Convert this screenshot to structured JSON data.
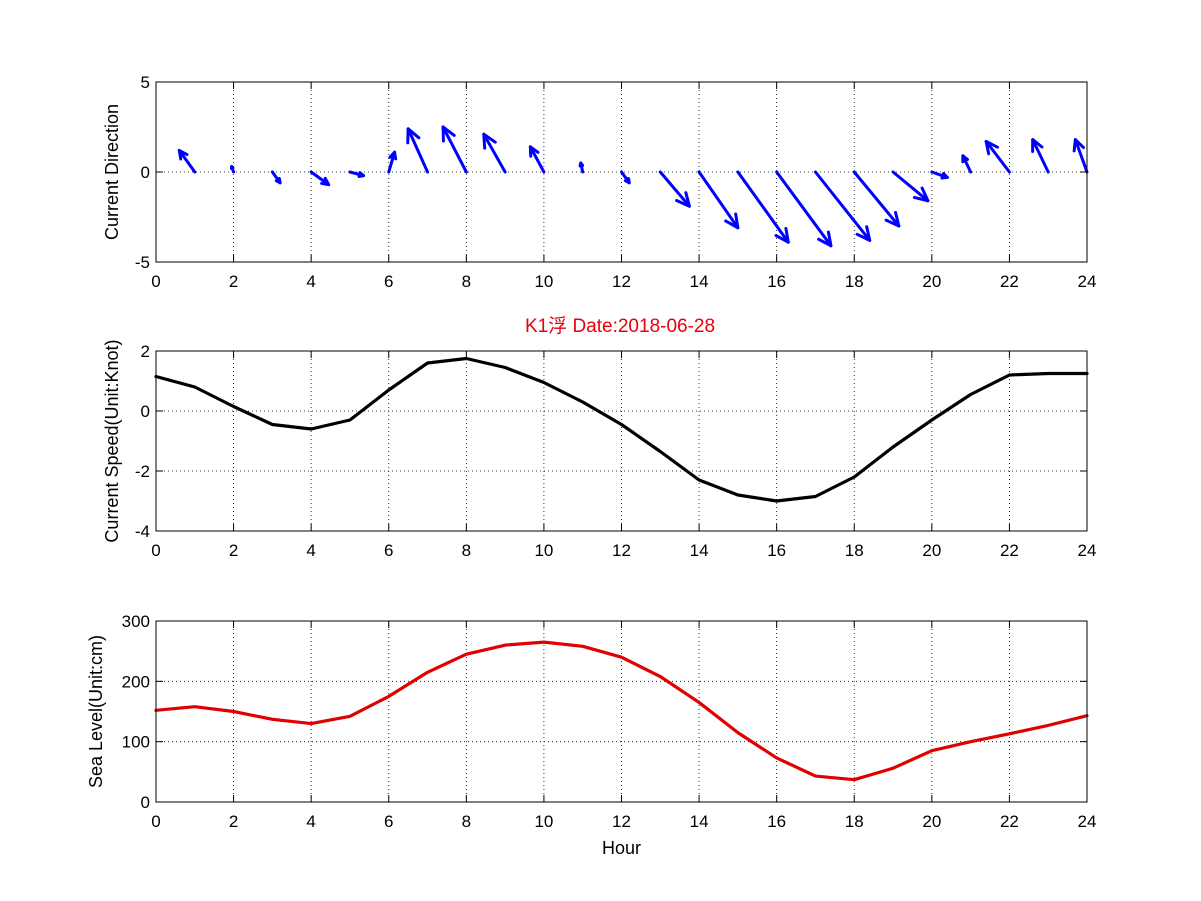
{
  "figure": {
    "title": "K1浮    Date:2018-06-28",
    "title_color": "#e8000b",
    "background": "#ffffff"
  },
  "chart_data": [
    {
      "type": "quiver",
      "xlabel": "",
      "ylabel": "Current Direction",
      "xlim": [
        0,
        24
      ],
      "ylim": [
        -5,
        5
      ],
      "xticks": [
        0,
        2,
        4,
        6,
        8,
        10,
        12,
        14,
        16,
        18,
        20,
        22,
        24
      ],
      "yticks": [
        -5,
        0,
        5
      ],
      "grid": true,
      "color": "#0000ff",
      "vectors": [
        {
          "x": 0,
          "y": 0,
          "u": 0.0,
          "v": 0.0
        },
        {
          "x": 1,
          "y": 0,
          "u": -0.4,
          "v": 1.2
        },
        {
          "x": 2,
          "y": 0,
          "u": -0.05,
          "v": 0.3
        },
        {
          "x": 3,
          "y": 0,
          "u": 0.2,
          "v": -0.6
        },
        {
          "x": 4,
          "y": 0,
          "u": 0.45,
          "v": -0.7
        },
        {
          "x": 5,
          "y": 0,
          "u": 0.35,
          "v": -0.2
        },
        {
          "x": 6,
          "y": 0,
          "u": 0.15,
          "v": 1.1
        },
        {
          "x": 7,
          "y": 0,
          "u": -0.5,
          "v": 2.4
        },
        {
          "x": 8,
          "y": 0,
          "u": -0.6,
          "v": 2.5
        },
        {
          "x": 9,
          "y": 0,
          "u": -0.55,
          "v": 2.1
        },
        {
          "x": 10,
          "y": 0,
          "u": -0.35,
          "v": 1.4
        },
        {
          "x": 11,
          "y": 0,
          "u": -0.05,
          "v": 0.5
        },
        {
          "x": 12,
          "y": 0,
          "u": 0.2,
          "v": -0.6
        },
        {
          "x": 13,
          "y": 0,
          "u": 0.75,
          "v": -1.9
        },
        {
          "x": 14,
          "y": 0,
          "u": 1.0,
          "v": -3.1
        },
        {
          "x": 15,
          "y": 0,
          "u": 1.3,
          "v": -3.9
        },
        {
          "x": 16,
          "y": 0,
          "u": 1.4,
          "v": -4.1
        },
        {
          "x": 17,
          "y": 0,
          "u": 1.4,
          "v": -3.8
        },
        {
          "x": 18,
          "y": 0,
          "u": 1.15,
          "v": -3.0
        },
        {
          "x": 19,
          "y": 0,
          "u": 0.9,
          "v": -1.6
        },
        {
          "x": 20,
          "y": 0,
          "u": 0.4,
          "v": -0.3
        },
        {
          "x": 21,
          "y": 0,
          "u": -0.2,
          "v": 0.9
        },
        {
          "x": 22,
          "y": 0,
          "u": -0.6,
          "v": 1.7
        },
        {
          "x": 23,
          "y": 0,
          "u": -0.4,
          "v": 1.8
        },
        {
          "x": 24,
          "y": 0,
          "u": -0.3,
          "v": 1.8
        }
      ]
    },
    {
      "type": "line",
      "xlabel": "",
      "ylabel": "Current Speed(Unit:Knot)",
      "xlim": [
        0,
        24
      ],
      "ylim": [
        -4,
        2
      ],
      "xticks": [
        0,
        2,
        4,
        6,
        8,
        10,
        12,
        14,
        16,
        18,
        20,
        22,
        24
      ],
      "yticks": [
        -4,
        -2,
        0,
        2
      ],
      "grid": true,
      "color": "#000000",
      "x": [
        0,
        1,
        2,
        3,
        4,
        5,
        6,
        7,
        8,
        9,
        10,
        11,
        12,
        13,
        14,
        15,
        16,
        17,
        18,
        19,
        20,
        21,
        22,
        23,
        24
      ],
      "y": [
        1.15,
        0.8,
        0.15,
        -0.45,
        -0.6,
        -0.3,
        0.7,
        1.6,
        1.75,
        1.45,
        0.95,
        0.3,
        -0.45,
        -1.35,
        -2.3,
        -2.8,
        -3.0,
        -2.85,
        -2.2,
        -1.2,
        -0.3,
        0.55,
        1.2,
        1.25,
        1.25
      ]
    },
    {
      "type": "line",
      "xlabel": "Hour",
      "ylabel": "Sea Level(Unit:cm)",
      "xlim": [
        0,
        24
      ],
      "ylim": [
        0,
        300
      ],
      "xticks": [
        0,
        2,
        4,
        6,
        8,
        10,
        12,
        14,
        16,
        18,
        20,
        22,
        24
      ],
      "yticks": [
        0,
        100,
        200,
        300
      ],
      "grid": true,
      "color": "#e00000",
      "x": [
        0,
        1,
        2,
        3,
        4,
        5,
        6,
        7,
        8,
        9,
        10,
        11,
        12,
        13,
        14,
        15,
        16,
        17,
        18,
        19,
        20,
        21,
        22,
        23,
        24
      ],
      "y": [
        152,
        158,
        150,
        137,
        130,
        142,
        175,
        215,
        245,
        260,
        265,
        258,
        240,
        208,
        165,
        115,
        73,
        43,
        37,
        56,
        85,
        100,
        113,
        127,
        143
      ]
    }
  ]
}
